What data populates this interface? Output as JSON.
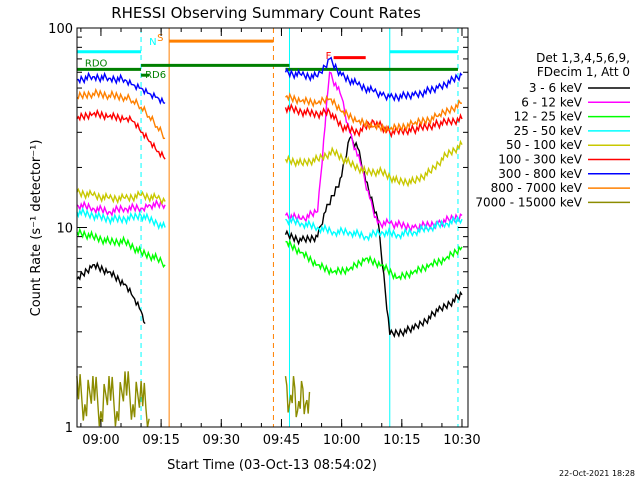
{
  "chart_data": {
    "type": "line",
    "title": "RHESSI Observing Summary Count Rates",
    "xlabel": "Start Time (03-Oct-13 08:54:02)",
    "ylabel": "Count Rate (s⁻¹ detector⁻¹)",
    "yscale": "log",
    "ylim": [
      1,
      100
    ],
    "xlim": [
      "08:54:02",
      "10:31:30"
    ],
    "x_ticks": [
      "09:00",
      "09:15",
      "09:30",
      "09:45",
      "10:00",
      "10:15",
      "10:30"
    ],
    "y_ticks": [
      "1",
      "10",
      "100"
    ],
    "legend_header": [
      "Det 1,3,4,5,6,9,",
      "FDecim 1, Att 0"
    ],
    "legend_position": "right",
    "footer_date": "22-Oct-2021 18:28",
    "series": [
      {
        "name": "3 - 6 keV",
        "color": "#000000",
        "segments": [
          {
            "x": [
              "08:54",
              "08:58",
              "09:02",
              "09:06",
              "09:08",
              "09:10",
              "09:11"
            ],
            "y": [
              5.5,
              6.5,
              6.0,
              5.2,
              4.5,
              3.8,
              3.3
            ]
          },
          {
            "x": [
              "09:46",
              "09:50",
              "09:54",
              "09:56",
              "10:00",
              "10:02",
              "10:04",
              "10:06",
              "10:09",
              "10:12",
              "10:18",
              "10:24",
              "10:30"
            ],
            "y": [
              9.2,
              8.6,
              9.0,
              12,
              18,
              28,
              25,
              17,
              11,
              2.9,
              3.1,
              3.8,
              4.6
            ]
          }
        ]
      },
      {
        "name": "6 - 12 keV",
        "color": "#ff00ff",
        "segments": [
          {
            "x": [
              "08:54",
              "08:58",
              "09:02",
              "09:06",
              "09:10",
              "09:12",
              "09:16"
            ],
            "y": [
              13,
              12.5,
              12,
              12.5,
              12.5,
              13,
              13
            ]
          },
          {
            "x": [
              "09:46",
              "09:50",
              "09:54",
              "09:57",
              "10:00",
              "10:02",
              "10:05",
              "10:07",
              "10:09",
              "10:12",
              "10:18",
              "10:24",
              "10:30"
            ],
            "y": [
              11.5,
              11,
              12,
              60,
              45,
              30,
              20,
              14,
              10.5,
              10.5,
              10,
              10.5,
              11.5
            ]
          }
        ]
      },
      {
        "name": "12 - 25 keV",
        "color": "#00ff00",
        "segments": [
          {
            "x": [
              "08:54",
              "08:58",
              "09:02",
              "09:06",
              "09:10",
              "09:14",
              "09:16"
            ],
            "y": [
              9.5,
              9.0,
              8.5,
              8.5,
              7.5,
              7.0,
              6.5
            ]
          },
          {
            "x": [
              "09:46",
              "09:50",
              "09:54",
              "09:58",
              "10:02",
              "10:06",
              "10:10",
              "10:14",
              "10:18",
              "10:22",
              "10:26",
              "10:30"
            ],
            "y": [
              8.5,
              7.5,
              6.5,
              6.0,
              6.2,
              7.0,
              6.5,
              5.6,
              6.0,
              6.5,
              7.0,
              8.0
            ]
          }
        ]
      },
      {
        "name": "25 - 50 keV",
        "color": "#00ffff",
        "segments": [
          {
            "x": [
              "08:54",
              "08:58",
              "09:02",
              "09:06",
              "09:10",
              "09:14",
              "09:16"
            ],
            "y": [
              12,
              11.5,
              11,
              11,
              11.5,
              10.5,
              10
            ]
          },
          {
            "x": [
              "09:46",
              "09:50",
              "09:54",
              "09:58",
              "10:02",
              "10:06",
              "10:10",
              "10:14",
              "10:18",
              "10:22",
              "10:26",
              "10:30"
            ],
            "y": [
              11,
              10.5,
              10,
              9.5,
              9.5,
              9.0,
              9.5,
              9.2,
              9.5,
              10,
              10.5,
              11
            ]
          }
        ]
      },
      {
        "name": "50 - 100 keV",
        "color": "#c8c800",
        "segments": [
          {
            "x": [
              "08:54",
              "08:58",
              "09:02",
              "09:06",
              "09:10",
              "09:14",
              "09:16"
            ],
            "y": [
              15,
              14.5,
              14,
              14,
              14.5,
              14,
              13.5
            ]
          },
          {
            "x": [
              "09:46",
              "09:50",
              "09:54",
              "09:58",
              "10:02",
              "10:06",
              "10:10",
              "10:14",
              "10:18",
              "10:22",
              "10:26",
              "10:30"
            ],
            "y": [
              22,
              21,
              22,
              24,
              21,
              19,
              19,
              17,
              17,
              19,
              23,
              26
            ]
          }
        ]
      },
      {
        "name": "100 - 300 keV",
        "color": "#ff0000",
        "segments": [
          {
            "x": [
              "08:54",
              "08:58",
              "09:02",
              "09:06",
              "09:08",
              "09:10",
              "09:12",
              "09:14",
              "09:16"
            ],
            "y": [
              35,
              37,
              36,
              35,
              34,
              30,
              27,
              24,
              22
            ]
          },
          {
            "x": [
              "09:46",
              "09:50",
              "09:54",
              "09:57",
              "10:00",
              "10:04",
              "10:08",
              "10:10",
              "10:12",
              "10:18",
              "10:24",
              "10:30"
            ],
            "y": [
              40,
              38,
              37,
              38,
              32,
              30,
              34,
              32,
              30,
              31,
              33,
              35
            ]
          }
        ]
      },
      {
        "name": "300 - 800 keV",
        "color": "#0000ff",
        "segments": [
          {
            "x": [
              "08:54",
              "08:58",
              "09:02",
              "09:06",
              "09:08",
              "09:10",
              "09:12",
              "09:14",
              "09:16"
            ],
            "y": [
              55,
              57,
              56,
              55,
              52,
              50,
              47,
              45,
              42
            ]
          },
          {
            "x": [
              "09:46",
              "09:50",
              "09:54",
              "09:57",
              "10:00",
              "10:04",
              "10:08",
              "10:10",
              "10:12",
              "10:18",
              "10:24",
              "10:30"
            ],
            "y": [
              60,
              58,
              57,
              70,
              58,
              52,
              48,
              46,
              45,
              46,
              50,
              58
            ]
          }
        ]
      },
      {
        "name": "800 - 7000 keV",
        "color": "#ff8000",
        "segments": [
          {
            "x": [
              "08:54",
              "08:58",
              "09:02",
              "09:06",
              "09:08",
              "09:10",
              "09:12",
              "09:14",
              "09:16"
            ],
            "y": [
              45,
              47,
              46,
              45,
              43,
              40,
              36,
              32,
              28
            ]
          },
          {
            "x": [
              "09:46",
              "09:50",
              "09:54",
              "09:57",
              "10:00",
              "10:04",
              "10:08",
              "10:12",
              "10:18",
              "10:24",
              "10:30"
            ],
            "y": [
              45,
              43,
              42,
              44,
              38,
              34,
              32,
              31,
              33,
              36,
              42
            ]
          }
        ]
      },
      {
        "name": "7000 - 15000 keV",
        "color": "#8c8c00",
        "segments": [
          {
            "x": [
              "08:54",
              "08:56",
              "08:58",
              "09:00",
              "09:02",
              "09:04",
              "09:06",
              "09:08",
              "09:10",
              "09:12"
            ],
            "y": [
              1.8,
              1.3,
              1.8,
              1.2,
              1.8,
              1.2,
              1.9,
              1.3,
              1.7,
              1.1
            ]
          },
          {
            "x": [
              "09:46",
              "09:47",
              "09:48",
              "09:49",
              "09:50",
              "09:51",
              "09:52"
            ],
            "y": [
              1.8,
              1.3,
              1.8,
              1.2,
              1.7,
              1.3,
              1.5
            ]
          }
        ]
      }
    ],
    "status_bars": [
      {
        "label": "",
        "color": "#00ffff",
        "segments": [
          [
            "08:54",
            "09:10",
            76
          ],
          [
            "10:12",
            "10:29",
            76
          ]
        ]
      },
      {
        "label": "RDO",
        "color": "#008000",
        "segments": [
          [
            "08:54",
            "09:10",
            62
          ],
          [
            "09:10",
            "09:47",
            65
          ],
          [
            "09:46",
            "10:29",
            62
          ]
        ]
      },
      {
        "label": "RD6",
        "color": "#008000",
        "segments": [
          [
            "09:10",
            "09:12",
            58
          ]
        ]
      },
      {
        "label": "S",
        "color": "#ff8000",
        "segments": [
          [
            "09:17",
            "09:43",
            86
          ]
        ]
      },
      {
        "label": "N",
        "color": "#00ffff",
        "segments": []
      },
      {
        "label": "F",
        "color": "#ff0000",
        "segments": [
          [
            "09:58",
            "10:06",
            71
          ]
        ]
      }
    ],
    "markers": [
      {
        "time": "09:10",
        "color": "#00ffff",
        "style": "dashed"
      },
      {
        "time": "09:17",
        "color": "#ff8000",
        "style": "solid"
      },
      {
        "time": "09:43",
        "color": "#ff8000",
        "style": "dashed"
      },
      {
        "time": "09:47",
        "color": "#00ffff",
        "style": "solid"
      },
      {
        "time": "10:12",
        "color": "#00ffff",
        "style": "solid"
      },
      {
        "time": "10:29",
        "color": "#00ffff",
        "style": "dashed"
      }
    ]
  }
}
